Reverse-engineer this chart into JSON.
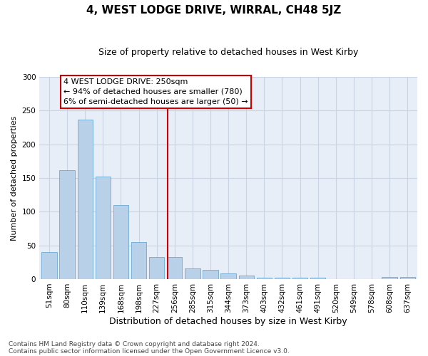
{
  "title": "4, WEST LODGE DRIVE, WIRRAL, CH48 5JZ",
  "subtitle": "Size of property relative to detached houses in West Kirby",
  "xlabel": "Distribution of detached houses by size in West Kirby",
  "ylabel": "Number of detached properties",
  "categories": [
    "51sqm",
    "80sqm",
    "110sqm",
    "139sqm",
    "168sqm",
    "198sqm",
    "227sqm",
    "256sqm",
    "285sqm",
    "315sqm",
    "344sqm",
    "373sqm",
    "403sqm",
    "432sqm",
    "461sqm",
    "491sqm",
    "520sqm",
    "549sqm",
    "578sqm",
    "608sqm",
    "637sqm"
  ],
  "values": [
    40,
    162,
    237,
    152,
    110,
    55,
    33,
    33,
    16,
    14,
    8,
    5,
    2,
    2,
    2,
    2,
    0,
    0,
    0,
    3,
    3
  ],
  "bar_color": "#b8d0e8",
  "bar_edge_color": "#6aaad4",
  "grid_color": "#c8d4e4",
  "background_color": "#e8eef8",
  "annotation_line_label": "4 WEST LODGE DRIVE: 250sqm",
  "annotation_text1": "← 94% of detached houses are smaller (780)",
  "annotation_text2": "6% of semi-detached houses are larger (50) →",
  "annotation_box_color": "#ffffff",
  "annotation_box_edge": "#cc0000",
  "vline_color": "#cc0000",
  "footnote1": "Contains HM Land Registry data © Crown copyright and database right 2024.",
  "footnote2": "Contains public sector information licensed under the Open Government Licence v3.0.",
  "ylim": [
    0,
    300
  ],
  "yticks": [
    0,
    50,
    100,
    150,
    200,
    250,
    300
  ],
  "title_fontsize": 11,
  "subtitle_fontsize": 9,
  "xlabel_fontsize": 9,
  "ylabel_fontsize": 8,
  "tick_fontsize": 7.5,
  "annotation_fontsize": 8,
  "footnote_fontsize": 6.5
}
